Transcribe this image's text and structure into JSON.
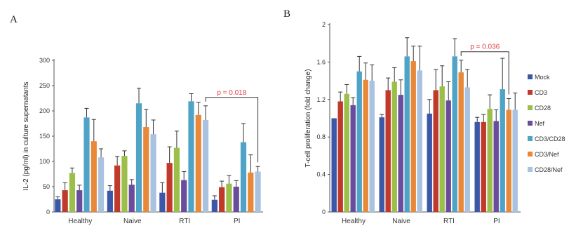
{
  "chart_data": [
    {
      "panel": "A",
      "type": "bar",
      "ylabel": "IL-2 (pg/ml) in culture supernatants",
      "ylim": [
        0,
        300
      ],
      "yticks": [
        "0",
        "50",
        "100",
        "150",
        "200",
        "250",
        "300"
      ],
      "categories": [
        "Healthy",
        "Naive",
        "RTI",
        "PI"
      ],
      "series": [
        {
          "name": "Mock",
          "color": "#3a57a8",
          "values": [
            25,
            42,
            38,
            24
          ],
          "errors": [
            5,
            10,
            20,
            8
          ]
        },
        {
          "name": "CD3",
          "color": "#c0392b",
          "values": [
            43,
            92,
            97,
            49
          ],
          "errors": [
            15,
            18,
            32,
            12
          ]
        },
        {
          "name": "CD28",
          "color": "#9cbf4a",
          "values": [
            77,
            111,
            127,
            56
          ],
          "errors": [
            10,
            10,
            33,
            16
          ]
        },
        {
          "name": "Nef",
          "color": "#6a4c9c",
          "values": [
            43,
            54,
            63,
            50
          ],
          "errors": [
            10,
            10,
            17,
            12
          ]
        },
        {
          "name": "CD3/CD28",
          "color": "#4fa3c7",
          "values": [
            187,
            215,
            219,
            138
          ],
          "errors": [
            18,
            30,
            15,
            37
          ]
        },
        {
          "name": "CD3/Nef",
          "color": "#e8893a",
          "values": [
            140,
            168,
            192,
            78
          ],
          "errors": [
            43,
            35,
            25,
            35
          ]
        },
        {
          "name": "CD28/Nef",
          "color": "#a9c2e0",
          "values": [
            108,
            154,
            182,
            80
          ],
          "errors": [
            17,
            28,
            28,
            10
          ]
        }
      ],
      "annotation": {
        "text": "p = 0.018",
        "from_category": "RTI",
        "to_category": "PI",
        "series": "CD28/Nef"
      }
    },
    {
      "panel": "B",
      "type": "bar",
      "ylabel": "T-cell proliferation (fold change)",
      "ylim": [
        0,
        2
      ],
      "yticks": [
        "0",
        "0.4",
        "0.8",
        "1.2",
        "1.6",
        "2"
      ],
      "categories": [
        "Healthy",
        "Naive",
        "RTI",
        "PI"
      ],
      "series": [
        {
          "name": "Mock",
          "color": "#3a57a8",
          "values": [
            1.0,
            1.01,
            1.05,
            0.96
          ],
          "errors": [
            0.0,
            0.03,
            0.15,
            0.05
          ]
        },
        {
          "name": "CD3",
          "color": "#c0392b",
          "values": [
            1.18,
            1.3,
            1.3,
            0.96
          ],
          "errors": [
            0.1,
            0.13,
            0.22,
            0.08
          ]
        },
        {
          "name": "CD28",
          "color": "#9cbf4a",
          "values": [
            1.26,
            1.39,
            1.34,
            1.1
          ],
          "errors": [
            0.1,
            0.15,
            0.22,
            0.15
          ]
        },
        {
          "name": "Nef",
          "color": "#6a4c9c",
          "values": [
            1.14,
            1.25,
            1.19,
            0.97
          ],
          "errors": [
            0.08,
            0.16,
            0.2,
            0.12
          ]
        },
        {
          "name": "CD3/CD28",
          "color": "#4fa3c7",
          "values": [
            1.5,
            1.66,
            1.66,
            1.31
          ],
          "errors": [
            0.16,
            0.2,
            0.19,
            0.33
          ]
        },
        {
          "name": "CD3/Nef",
          "color": "#e8893a",
          "values": [
            1.41,
            1.61,
            1.49,
            1.09
          ],
          "errors": [
            0.18,
            0.16,
            0.13,
            0.12
          ]
        },
        {
          "name": "CD28/Nef",
          "color": "#a9c2e0",
          "values": [
            1.4,
            1.51,
            1.33,
            1.09
          ],
          "errors": [
            0.17,
            0.26,
            0.19,
            0.18
          ]
        }
      ],
      "annotation": {
        "text": "p = 0.036",
        "from_category": "RTI",
        "to_category": "PI",
        "series": "CD3/Nef"
      }
    }
  ],
  "legend": {
    "placement": "right",
    "entries": [
      "Mock",
      "CD3",
      "CD28",
      "Nef",
      "CD3/CD28",
      "CD3/Nef",
      "CD28/Nef"
    ]
  }
}
